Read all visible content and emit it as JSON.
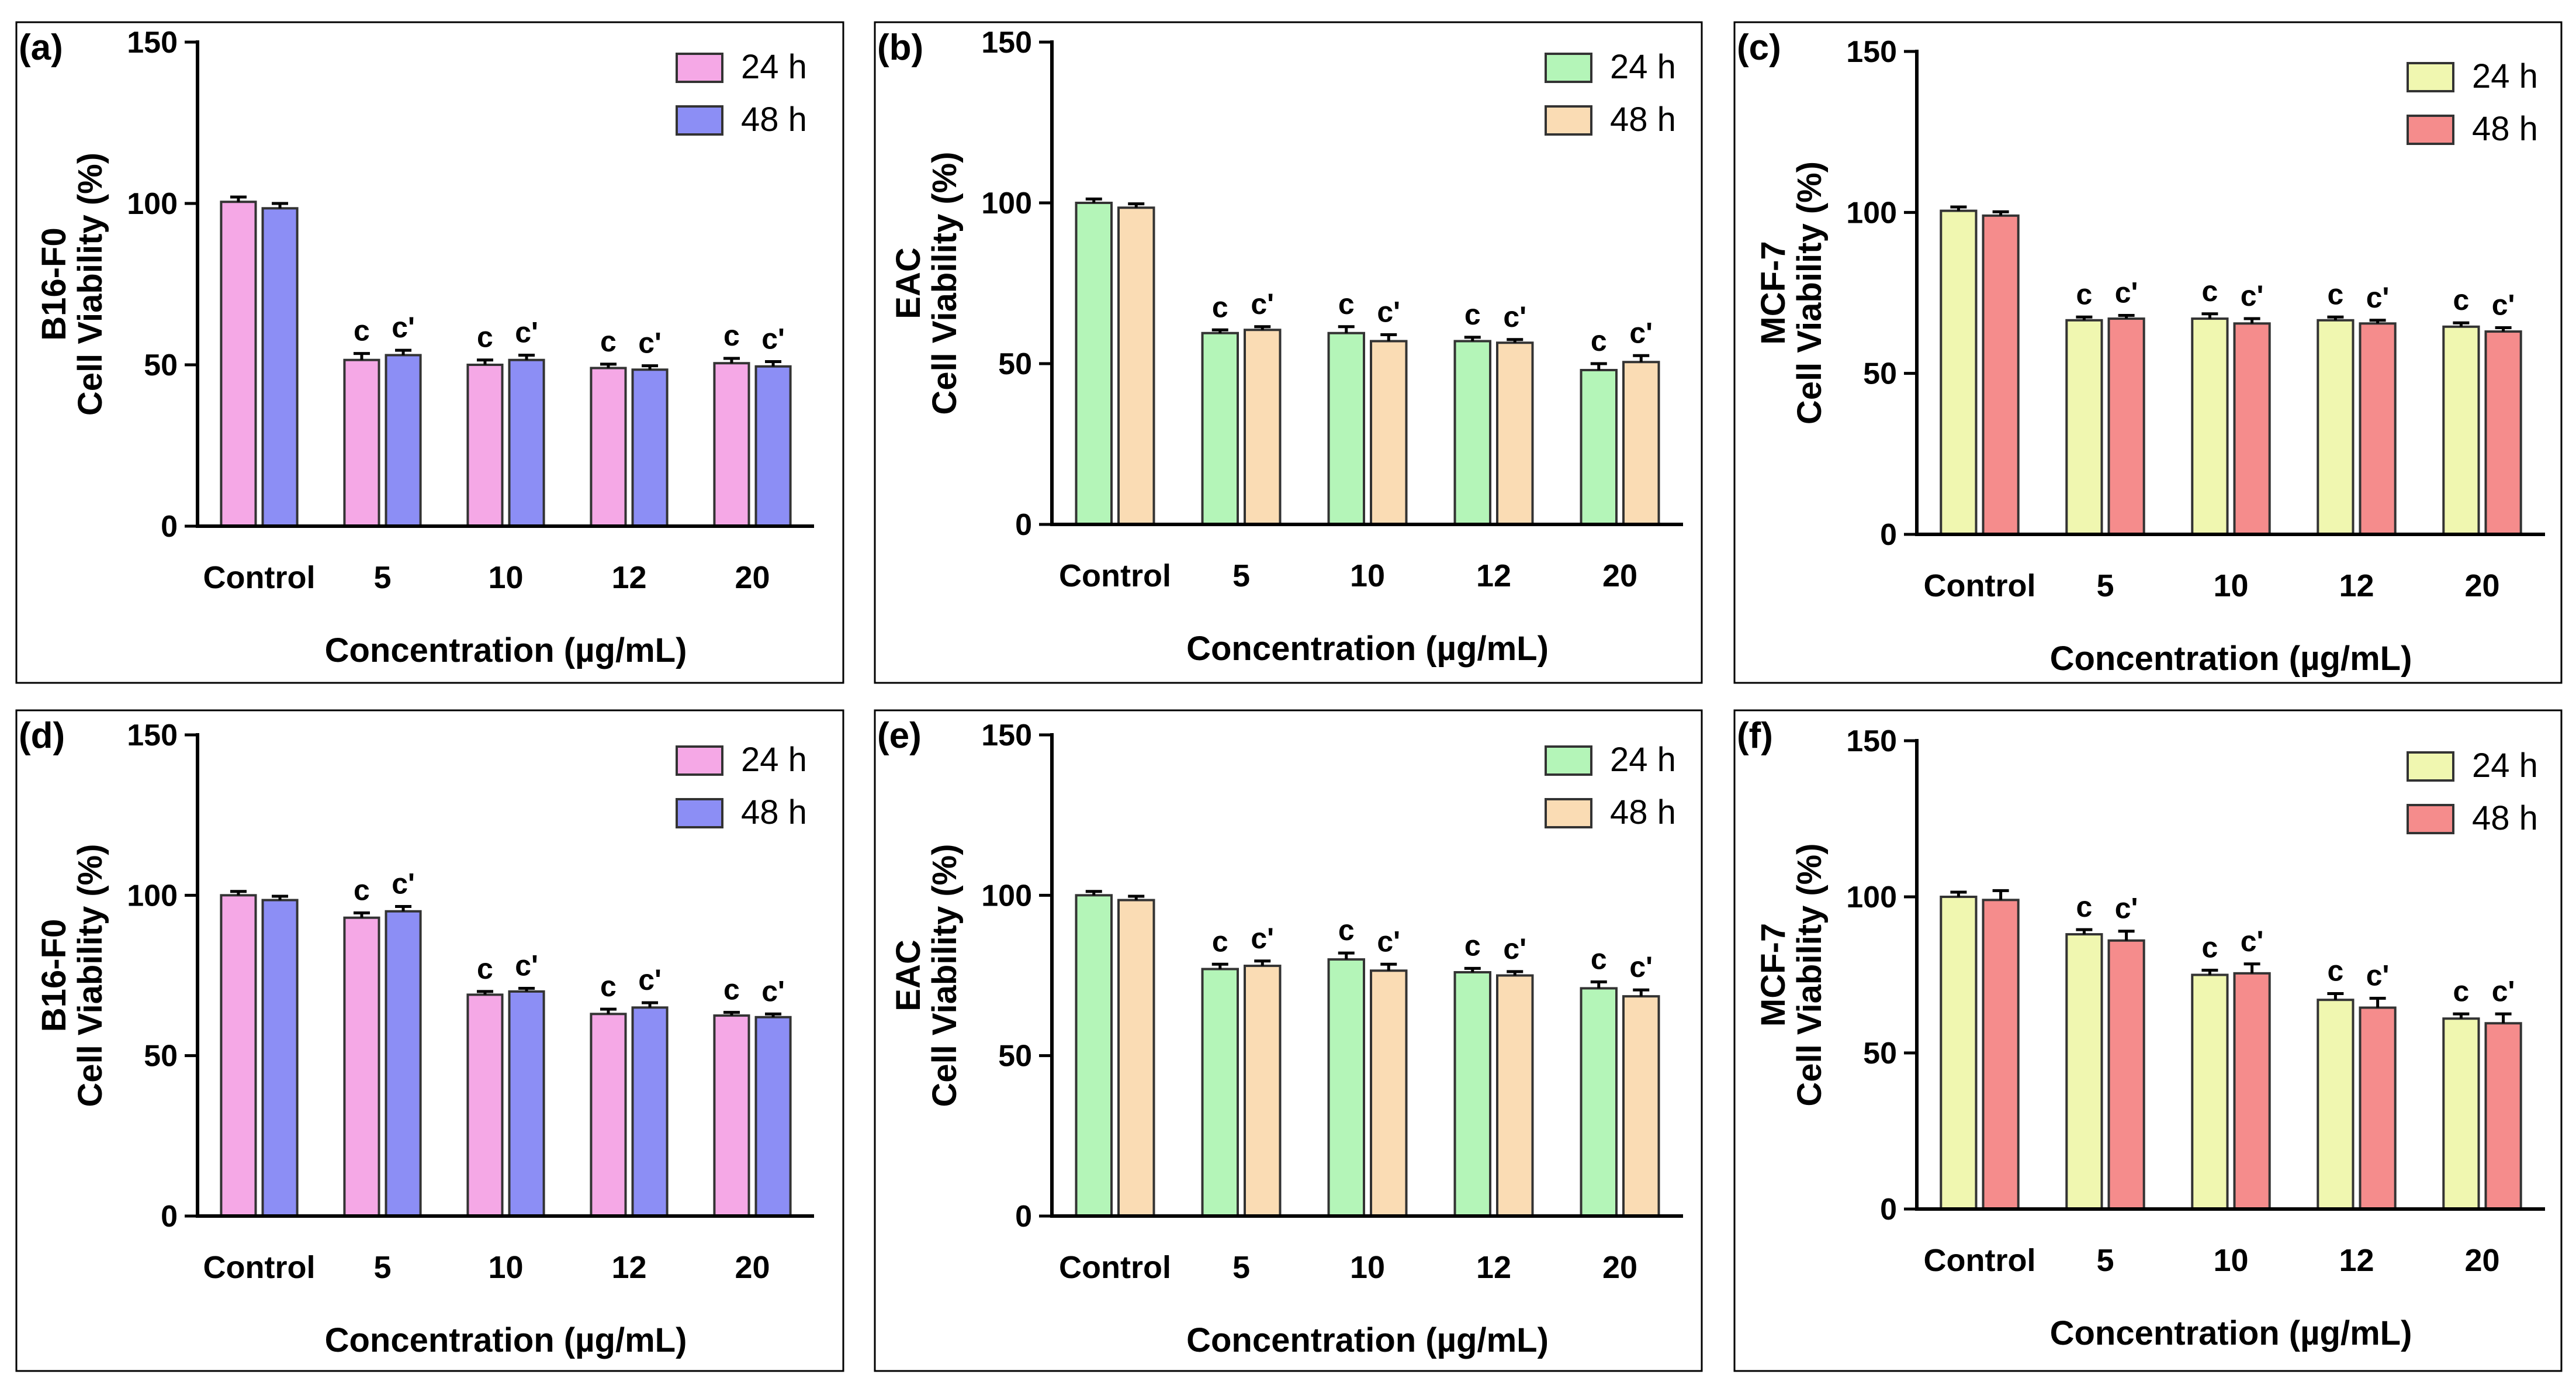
{
  "figure": {
    "series_names": [
      "24 h",
      "48 h"
    ],
    "sig_labels": [
      "c",
      "c'"
    ]
  },
  "chart_data": [
    {
      "id": "a",
      "panel_label": "(a)",
      "type": "bar",
      "cell_line": "B16-F0",
      "ylabel": "Cell Viability (%)",
      "xlabel": "Concentration (µg/mL)",
      "categories": [
        "Control",
        "5",
        "10",
        "12",
        "20"
      ],
      "ylim": [
        0,
        150
      ],
      "yticks": [
        0,
        50,
        100,
        150
      ],
      "series": [
        {
          "name": "24 h",
          "color": "#f5a8e6",
          "values": [
            100.5,
            51.5,
            50,
            49,
            50.5
          ],
          "errors": [
            1.5,
            2,
            1.5,
            1.2,
            1.5
          ]
        },
        {
          "name": "48 h",
          "color": "#8c8ef5",
          "values": [
            98.5,
            53,
            51.5,
            48.5,
            49.5
          ],
          "errors": [
            1.5,
            1.5,
            1.5,
            1.2,
            1.5
          ]
        }
      ],
      "annotations": [
        [
          "",
          "c",
          "c",
          "c",
          "c"
        ],
        [
          "",
          "c'",
          "c'",
          "c'",
          "c'"
        ]
      ]
    },
    {
      "id": "b",
      "panel_label": "(b)",
      "type": "bar",
      "cell_line": "EAC",
      "ylabel": "Cell Viability (%)",
      "xlabel": "Concentration (µg/mL)",
      "categories": [
        "Control",
        "5",
        "10",
        "12",
        "20"
      ],
      "ylim": [
        0,
        150
      ],
      "yticks": [
        0,
        50,
        100,
        150
      ],
      "series": [
        {
          "name": "24 h",
          "color": "#b4f5b8",
          "values": [
            100,
            59.5,
            59.5,
            57,
            48
          ],
          "errors": [
            1.2,
            1,
            2,
            1.2,
            2
          ]
        },
        {
          "name": "48 h",
          "color": "#fadcb4",
          "values": [
            98.5,
            60.5,
            57,
            56.5,
            50.5
          ],
          "errors": [
            1.2,
            1,
            2,
            1,
            2
          ]
        }
      ],
      "annotations": [
        [
          "",
          "c",
          "c",
          "c",
          "c"
        ],
        [
          "",
          "c'",
          "c'",
          "c'",
          "c'"
        ]
      ]
    },
    {
      "id": "c",
      "panel_label": "(c)",
      "type": "bar",
      "cell_line": "MCF-7",
      "ylabel": "Cell Viability (%)",
      "xlabel": "Concentration (µg/mL)",
      "categories": [
        "Control",
        "5",
        "10",
        "12",
        "20"
      ],
      "ylim": [
        0,
        150
      ],
      "yticks": [
        0,
        50,
        100,
        150
      ],
      "series": [
        {
          "name": "24 h",
          "color": "#f0f7b0",
          "values": [
            100.5,
            66.5,
            67,
            66.5,
            64.5
          ],
          "errors": [
            1.2,
            1,
            1.5,
            1,
            1.2
          ]
        },
        {
          "name": "48 h",
          "color": "#f58c8c",
          "values": [
            99,
            67,
            65.5,
            65.5,
            63
          ],
          "errors": [
            1.2,
            1,
            1.5,
            1,
            1.2
          ]
        }
      ],
      "annotations": [
        [
          "",
          "c",
          "c",
          "c",
          "c"
        ],
        [
          "",
          "c'",
          "c'",
          "c'",
          "c'"
        ]
      ]
    },
    {
      "id": "d",
      "panel_label": "(d)",
      "type": "bar",
      "cell_line": "B16-F0",
      "ylabel": "Cell Viability (%)",
      "xlabel": "Concentration (µg/mL)",
      "categories": [
        "Control",
        "5",
        "10",
        "12",
        "20"
      ],
      "ylim": [
        0,
        150
      ],
      "yticks": [
        0,
        50,
        100,
        150
      ],
      "series": [
        {
          "name": "24 h",
          "color": "#f5a8e6",
          "values": [
            100,
            93,
            69,
            63,
            62.5
          ],
          "errors": [
            1.2,
            1.5,
            1,
            1.5,
            1
          ]
        },
        {
          "name": "48 h",
          "color": "#8c8ef5",
          "values": [
            98.5,
            95,
            70,
            65,
            62
          ],
          "errors": [
            1.2,
            1.5,
            1,
            1.5,
            1
          ]
        }
      ],
      "annotations": [
        [
          "",
          "c",
          "c",
          "c",
          "c"
        ],
        [
          "",
          "c'",
          "c'",
          "c'",
          "c'"
        ]
      ]
    },
    {
      "id": "e",
      "panel_label": "(e)",
      "type": "bar",
      "cell_line": "EAC",
      "ylabel": "Cell Viability (%)",
      "xlabel": "Concentration (µg/mL)",
      "categories": [
        "Control",
        "5",
        "10",
        "12",
        "20"
      ],
      "ylim": [
        0,
        150
      ],
      "yticks": [
        0,
        50,
        100,
        150
      ],
      "series": [
        {
          "name": "24 h",
          "color": "#b4f5b8",
          "values": [
            100,
            77,
            80,
            76,
            71
          ],
          "errors": [
            1.2,
            1.5,
            2,
            1.2,
            2
          ]
        },
        {
          "name": "48 h",
          "color": "#fadcb4",
          "values": [
            98.5,
            78,
            76.5,
            75,
            68.5
          ],
          "errors": [
            1.2,
            1.5,
            2,
            1.2,
            2
          ]
        }
      ],
      "annotations": [
        [
          "",
          "c",
          "c",
          "c",
          "c"
        ],
        [
          "",
          "c'",
          "c'",
          "c'",
          "c'"
        ]
      ]
    },
    {
      "id": "f",
      "panel_label": "(f)",
      "type": "bar",
      "cell_line": "MCF-7",
      "ylabel": "Cell Viability (%)",
      "xlabel": "Concentration (µg/mL)",
      "categories": [
        "Control",
        "5",
        "10",
        "12",
        "20"
      ],
      "ylim": [
        0,
        150
      ],
      "yticks": [
        0,
        50,
        100,
        150
      ],
      "series": [
        {
          "name": "24 h",
          "color": "#f0f7b0",
          "values": [
            100,
            88,
            75,
            67,
            61
          ],
          "errors": [
            1.5,
            1.5,
            1.5,
            2,
            1.5
          ]
        },
        {
          "name": "48 h",
          "color": "#f58c8c",
          "values": [
            99,
            86,
            75.5,
            64.5,
            59.5
          ],
          "errors": [
            3,
            3,
            3,
            3,
            3
          ]
        }
      ],
      "annotations": [
        [
          "",
          "c",
          "c",
          "c",
          "c"
        ],
        [
          "",
          "c'",
          "c'",
          "c'",
          "c'"
        ]
      ]
    }
  ]
}
